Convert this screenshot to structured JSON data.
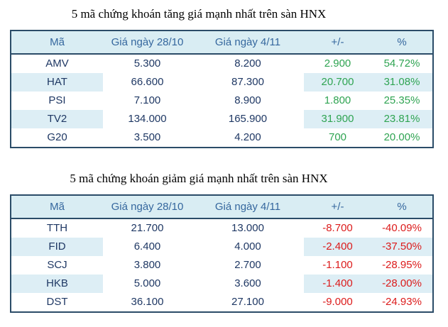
{
  "colors": {
    "positive": "#2fa452",
    "negative": "#dc1b1b",
    "header_text": "#35679e",
    "body_text": "#1f3864",
    "header_bg": "#d9edf3",
    "stripe_bg": "#ddeef5",
    "border": "#2b4c68",
    "title_text": "#000000",
    "page_bg": "#ffffff"
  },
  "sections": [
    {
      "title": "5 mã chứng khoán tăng giá mạnh nhất trên sàn HNX",
      "direction": "up",
      "columns": [
        "Mã",
        "Giá ngày 28/10",
        "Giá ngày 4/11",
        "+/-",
        "%"
      ],
      "rows": [
        [
          "AMV",
          "5.300",
          "8.200",
          "2.900",
          "54.72%"
        ],
        [
          "HAT",
          "66.600",
          "87.300",
          "20.700",
          "31.08%"
        ],
        [
          "PSI",
          "7.100",
          "8.900",
          "1.800",
          "25.35%"
        ],
        [
          "TV2",
          "134.000",
          "165.900",
          "31.900",
          "23.81%"
        ],
        [
          "G20",
          "3.500",
          "4.200",
          "700",
          "20.00%"
        ]
      ]
    },
    {
      "title": "5 mã chứng khoán giảm giá mạnh nhất trên sàn HNX",
      "direction": "down",
      "columns": [
        "Mã",
        "Giá ngày 28/10",
        "Giá ngày 4/11",
        "+/-",
        "%"
      ],
      "rows": [
        [
          "TTH",
          "21.700",
          "13.000",
          "-8.700",
          "-40.09%"
        ],
        [
          "FID",
          "6.400",
          "4.000",
          "-2.400",
          "-37.50%"
        ],
        [
          "SCJ",
          "3.800",
          "2.700",
          "-1.100",
          "-28.95%"
        ],
        [
          "HKB",
          "5.000",
          "3.600",
          "-1.400",
          "-28.00%"
        ],
        [
          "DST",
          "36.100",
          "27.100",
          "-9.000",
          "-24.93%"
        ]
      ]
    }
  ]
}
